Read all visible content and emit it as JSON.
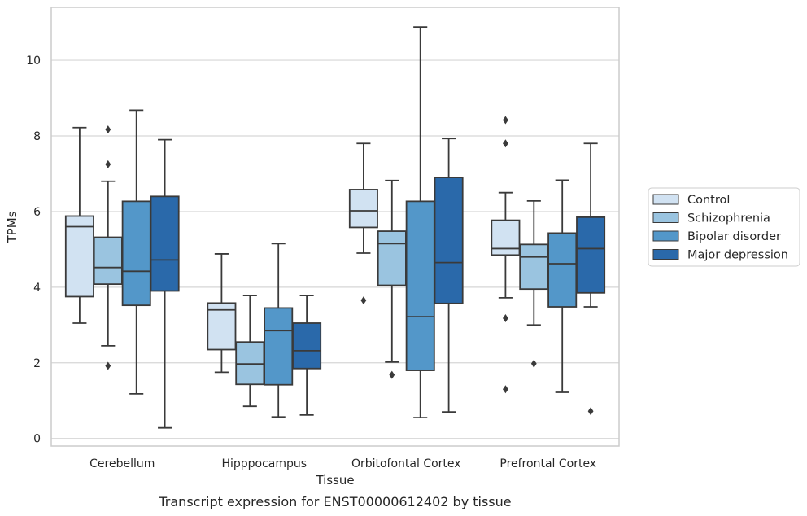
{
  "chart_data": {
    "type": "box",
    "xlabel": "Tissue",
    "ylabel": "TPMs",
    "caption": "Transcript expression for ENST00000612402 by tissue",
    "ylim": [
      -0.2,
      11.4
    ],
    "yticks": [
      0,
      2,
      4,
      6,
      8,
      10
    ],
    "grid": "horizontal",
    "legend_position": "right",
    "categories": [
      "Cerebellum",
      "Hipppocampus",
      "Orbitofontal Cortex",
      "Prefrontal Cortex"
    ],
    "series": [
      {
        "name": "Control",
        "color": "#d1e2f2",
        "boxes": [
          {
            "whislo": 3.05,
            "q1": 3.75,
            "med": 5.6,
            "q3": 5.88,
            "whishi": 8.22,
            "fliers": []
          },
          {
            "whislo": 1.75,
            "q1": 2.35,
            "med": 3.4,
            "q3": 3.58,
            "whishi": 4.88,
            "fliers": []
          },
          {
            "whislo": 4.9,
            "q1": 5.58,
            "med": 6.02,
            "q3": 6.58,
            "whishi": 7.8,
            "fliers": [
              3.65
            ]
          },
          {
            "whislo": 3.72,
            "q1": 4.85,
            "med": 5.02,
            "q3": 5.77,
            "whishi": 6.5,
            "fliers": [
              8.42,
              7.8,
              3.18,
              1.3
            ]
          }
        ]
      },
      {
        "name": "Schizophrenia",
        "color": "#9ac4e0",
        "boxes": [
          {
            "whislo": 2.45,
            "q1": 4.08,
            "med": 4.52,
            "q3": 5.32,
            "whishi": 6.8,
            "fliers": [
              8.17,
              7.25,
              1.92
            ]
          },
          {
            "whislo": 0.85,
            "q1": 1.43,
            "med": 1.97,
            "q3": 2.55,
            "whishi": 3.78,
            "fliers": []
          },
          {
            "whislo": 2.02,
            "q1": 4.05,
            "med": 5.15,
            "q3": 5.48,
            "whishi": 6.82,
            "fliers": [
              1.68
            ]
          },
          {
            "whislo": 3.0,
            "q1": 3.95,
            "med": 4.8,
            "q3": 5.13,
            "whishi": 6.28,
            "fliers": [
              1.98
            ]
          }
        ]
      },
      {
        "name": "Bipolar disorder",
        "color": "#5397c9",
        "boxes": [
          {
            "whislo": 1.18,
            "q1": 3.52,
            "med": 4.42,
            "q3": 6.27,
            "whishi": 8.68,
            "fliers": []
          },
          {
            "whislo": 0.57,
            "q1": 1.42,
            "med": 2.85,
            "q3": 3.45,
            "whishi": 5.15,
            "fliers": []
          },
          {
            "whislo": 0.55,
            "q1": 1.8,
            "med": 3.22,
            "q3": 6.27,
            "whishi": 10.88,
            "fliers": []
          },
          {
            "whislo": 1.22,
            "q1": 3.48,
            "med": 4.62,
            "q3": 5.43,
            "whishi": 6.83,
            "fliers": []
          }
        ]
      },
      {
        "name": "Major depression",
        "color": "#2a69aa",
        "boxes": [
          {
            "whislo": 0.28,
            "q1": 3.9,
            "med": 4.72,
            "q3": 6.4,
            "whishi": 7.9,
            "fliers": []
          },
          {
            "whislo": 0.62,
            "q1": 1.85,
            "med": 2.32,
            "q3": 3.05,
            "whishi": 3.78,
            "fliers": []
          },
          {
            "whislo": 0.7,
            "q1": 3.57,
            "med": 4.65,
            "q3": 6.9,
            "whishi": 7.93,
            "fliers": []
          },
          {
            "whislo": 3.48,
            "q1": 3.85,
            "med": 5.02,
            "q3": 5.85,
            "whishi": 7.8,
            "fliers": [
              0.72
            ]
          }
        ]
      }
    ]
  }
}
